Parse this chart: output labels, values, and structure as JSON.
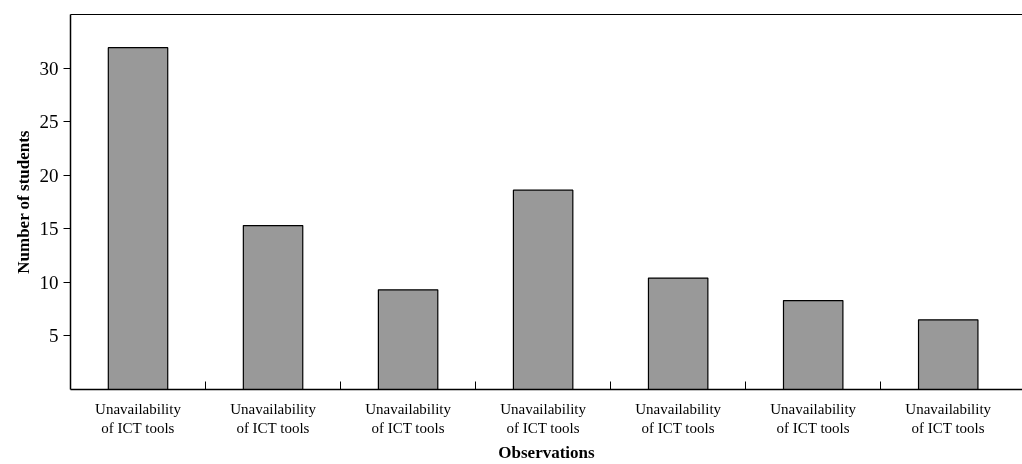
{
  "chart_data": {
    "type": "bar",
    "xlabel": "Observations",
    "ylabel": "Number of students",
    "categories": [
      "Unavailability of ICT tools",
      "Unavailability of ICT tools",
      "Unavailability of ICT tools",
      "Unavailability of ICT tools",
      "Unavailability of ICT tools",
      "Unavailability of ICT tools",
      "Unavailability of ICT tools"
    ],
    "values": [
      31.9,
      15.3,
      9.3,
      18.6,
      10.4,
      8.3,
      6.5
    ],
    "color": "#999999",
    "ylim": [
      0,
      35
    ],
    "yticks": [
      5,
      10,
      15,
      20,
      25,
      30
    ],
    "grid": false
  }
}
